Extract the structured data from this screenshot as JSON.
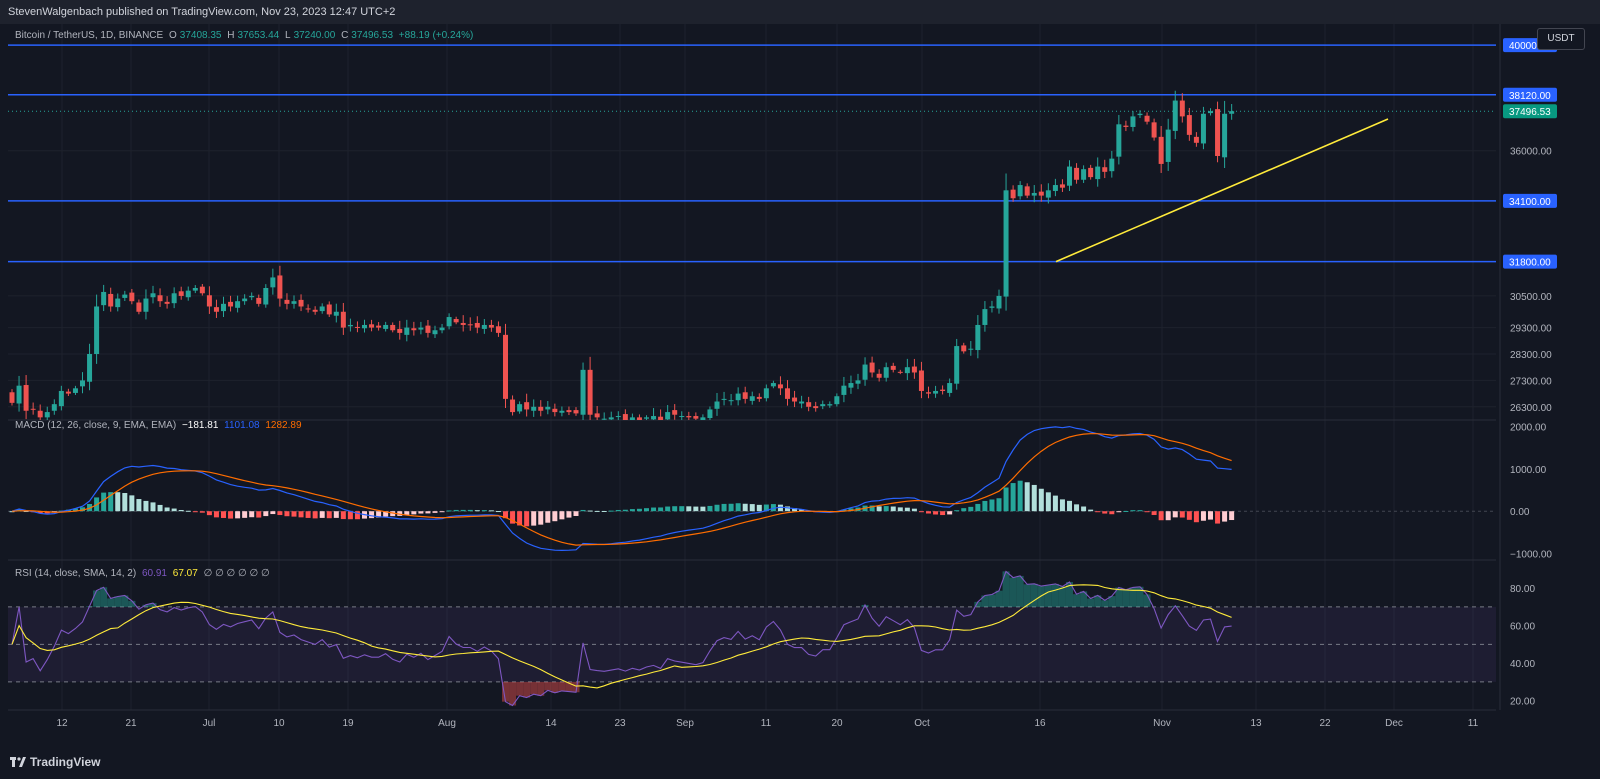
{
  "header": {
    "text": "StevenWalgenbach published on TradingView.com, Nov 23, 2023 12:47 UTC+2"
  },
  "legend": {
    "symbol": "Bitcoin / TetherUS, 1D, BINANCE",
    "open_label": "O",
    "open": "37408.35",
    "high_label": "H",
    "high": "37653.44",
    "low_label": "L",
    "low": "37240.00",
    "close_label": "C",
    "close": "37496.53",
    "change": "+88.19 (+0.24%)"
  },
  "macd_legend": {
    "label": "MACD (12, 26, close, 9, EMA, EMA)",
    "hist": "−181.81",
    "macd": "1101.08",
    "signal": "1282.89"
  },
  "rsi_legend": {
    "label": "RSI (14, close, SMA, 14, 2)",
    "rsi": "60.91",
    "ma": "67.07",
    "extra": "∅ ∅ ∅ ∅ ∅ ∅"
  },
  "currency_button": "USDT",
  "footer": {
    "brand": "TradingView"
  },
  "colors": {
    "up": "#26a69a",
    "down": "#ef5350",
    "level_line": "#2962ff",
    "trendline": "#ffeb3b",
    "macd": "#2962ff",
    "signal": "#ff6d00",
    "rsi": "#7e57c2",
    "rsi_ma": "#ffeb3b"
  },
  "chart_data": [
    {
      "type": "candlestick",
      "title": "Bitcoin / TetherUS, 1D, BINANCE",
      "price_axis_ticks": [
        36000,
        30500,
        29300,
        28300,
        27300,
        26300
      ],
      "price_range": [
        25800,
        40800
      ],
      "date_axis_ticks": [
        "12",
        "21",
        "Jul",
        "10",
        "19",
        "Aug",
        "14",
        "23",
        "Sep",
        "11",
        "20",
        "Oct",
        "16",
        "Nov",
        "13",
        "22",
        "Dec",
        "11"
      ],
      "horizontal_levels": [
        40000.0,
        38120.0,
        34100.0,
        31800.0
      ],
      "last_price": 37496.53,
      "trendline": {
        "from": {
          "date": "Oct 18",
          "price": 31800
        },
        "to": {
          "date": "Nov 26",
          "price": 37200
        }
      },
      "close_series": [
        26450,
        27100,
        26150,
        26200,
        25900,
        26100,
        26400,
        26900,
        26800,
        27000,
        27300,
        28300,
        30100,
        30650,
        30100,
        30400,
        30550,
        30300,
        29900,
        30400,
        30600,
        30300,
        30200,
        30600,
        30500,
        30700,
        30800,
        30600,
        30100,
        29900,
        30200,
        30100,
        30300,
        30400,
        30500,
        30200,
        30800,
        31200,
        30400,
        30200,
        30300,
        30100,
        30000,
        29900,
        30100,
        29800,
        29900,
        29300,
        29400,
        29300,
        29400,
        29300,
        29300,
        29400,
        29200,
        29100,
        29300,
        29200,
        29300,
        29100,
        29200,
        29300,
        29700,
        29500,
        29400,
        29400,
        29300,
        29400,
        29300,
        29100,
        26600,
        26100,
        26400,
        26200,
        26300,
        26150,
        26300,
        26100,
        26150,
        26100,
        26050,
        27700,
        26000,
        25900,
        25850,
        25900,
        25950,
        25800,
        25900,
        25800,
        25900,
        25950,
        25800,
        26100,
        26000,
        25950,
        25900,
        25850,
        25900,
        26200,
        26500,
        26600,
        26550,
        26800,
        26600,
        26700,
        26600,
        27000,
        27200,
        27000,
        26600,
        26500,
        26500,
        26300,
        26250,
        26400,
        26400,
        26700,
        27100,
        27200,
        27300,
        27900,
        27600,
        27400,
        27800,
        27700,
        27600,
        27800,
        27600,
        26900,
        26800,
        26900,
        26900,
        27200,
        28600,
        28400,
        28500,
        29400,
        30000,
        30100,
        30500,
        34500,
        34200,
        34700,
        34300,
        34400,
        34300,
        34500,
        34700,
        34600,
        35400,
        34900,
        35300,
        35000,
        35400,
        35200,
        35700,
        37000,
        36900,
        37300,
        37400,
        37100,
        36500,
        35500,
        36800,
        37900,
        37300,
        36600,
        36300,
        37400,
        37500,
        35800,
        37400,
        37496.53
      ]
    },
    {
      "type": "line",
      "title": "MACD (12, 26, close, 9, EMA, EMA)",
      "axis_ticks": [
        2000.0,
        1000.0,
        0.0,
        -1000.0
      ],
      "range": [
        -1150,
        2150
      ],
      "series": [
        {
          "name": "MACD",
          "last": 1101.08
        },
        {
          "name": "Signal",
          "last": 1282.89
        },
        {
          "name": "Histogram",
          "last": -181.81
        }
      ]
    },
    {
      "type": "line",
      "title": "RSI (14, close, SMA, 14, 2)",
      "axis_ticks": [
        80.0,
        60.0,
        40.0,
        20.0
      ],
      "range": [
        15,
        95
      ],
      "bands": {
        "upper": 70,
        "middle": 50,
        "lower": 30
      },
      "series": [
        {
          "name": "RSI",
          "last": 60.91
        },
        {
          "name": "RSI-based MA",
          "last": 67.07
        }
      ]
    }
  ]
}
